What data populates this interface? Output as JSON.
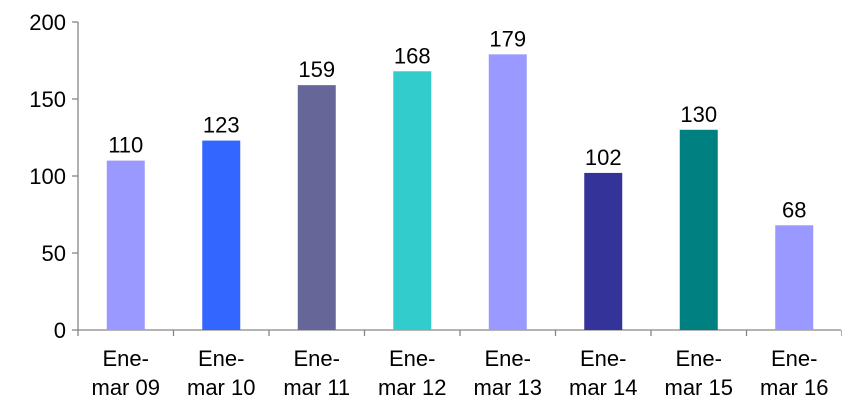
{
  "chart_data": {
    "type": "bar",
    "title": "",
    "xlabel": "",
    "ylabel": "",
    "ylim": [
      0,
      200
    ],
    "yticks": [
      0,
      50,
      100,
      150,
      200
    ],
    "grid": false,
    "legend": "none",
    "categories": [
      [
        "Ene-",
        "mar 09"
      ],
      [
        "Ene-",
        "mar 10"
      ],
      [
        "Ene-",
        "mar 11"
      ],
      [
        "Ene-",
        "mar 12"
      ],
      [
        "Ene-",
        "mar 13"
      ],
      [
        "Ene-",
        "mar 14"
      ],
      [
        "Ene-",
        "mar 15"
      ],
      [
        "Ene-",
        "mar 16"
      ]
    ],
    "values": [
      110,
      123,
      159,
      168,
      179,
      102,
      130,
      68
    ],
    "colors": [
      "#9999ff",
      "#3366ff",
      "#666699",
      "#33cccc",
      "#9999ff",
      "#333399",
      "#008080",
      "#9999ff"
    ]
  }
}
